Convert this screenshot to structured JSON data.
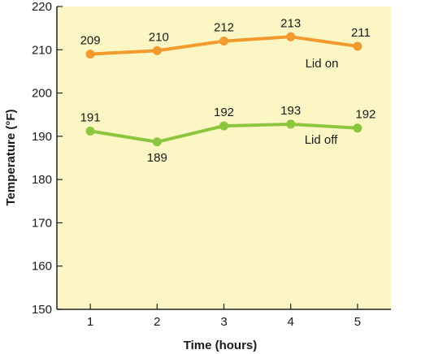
{
  "chart_data": {
    "type": "line",
    "title": "",
    "xlabel": "Time (hours)",
    "ylabel": "Temperature (°F)",
    "x": [
      1,
      2,
      3,
      4,
      5
    ],
    "xlim": [
      0.5,
      5.5
    ],
    "ylim": [
      150,
      220
    ],
    "yticks": [
      150,
      160,
      170,
      180,
      190,
      200,
      210,
      220
    ],
    "grid": false,
    "background_color": "#fbf6c4",
    "series": [
      {
        "name": "Lid on",
        "color": "#f29a2e",
        "values": [
          209,
          209.8,
          212,
          213,
          210.8
        ],
        "labels": [
          "209",
          "210",
          "212",
          "213",
          "211"
        ]
      },
      {
        "name": "Lid off",
        "color": "#8cc63f",
        "values": [
          191.2,
          188.7,
          192.4,
          192.8,
          191.9
        ],
        "labels": [
          "191",
          "189",
          "192",
          "193",
          "192"
        ]
      }
    ]
  }
}
